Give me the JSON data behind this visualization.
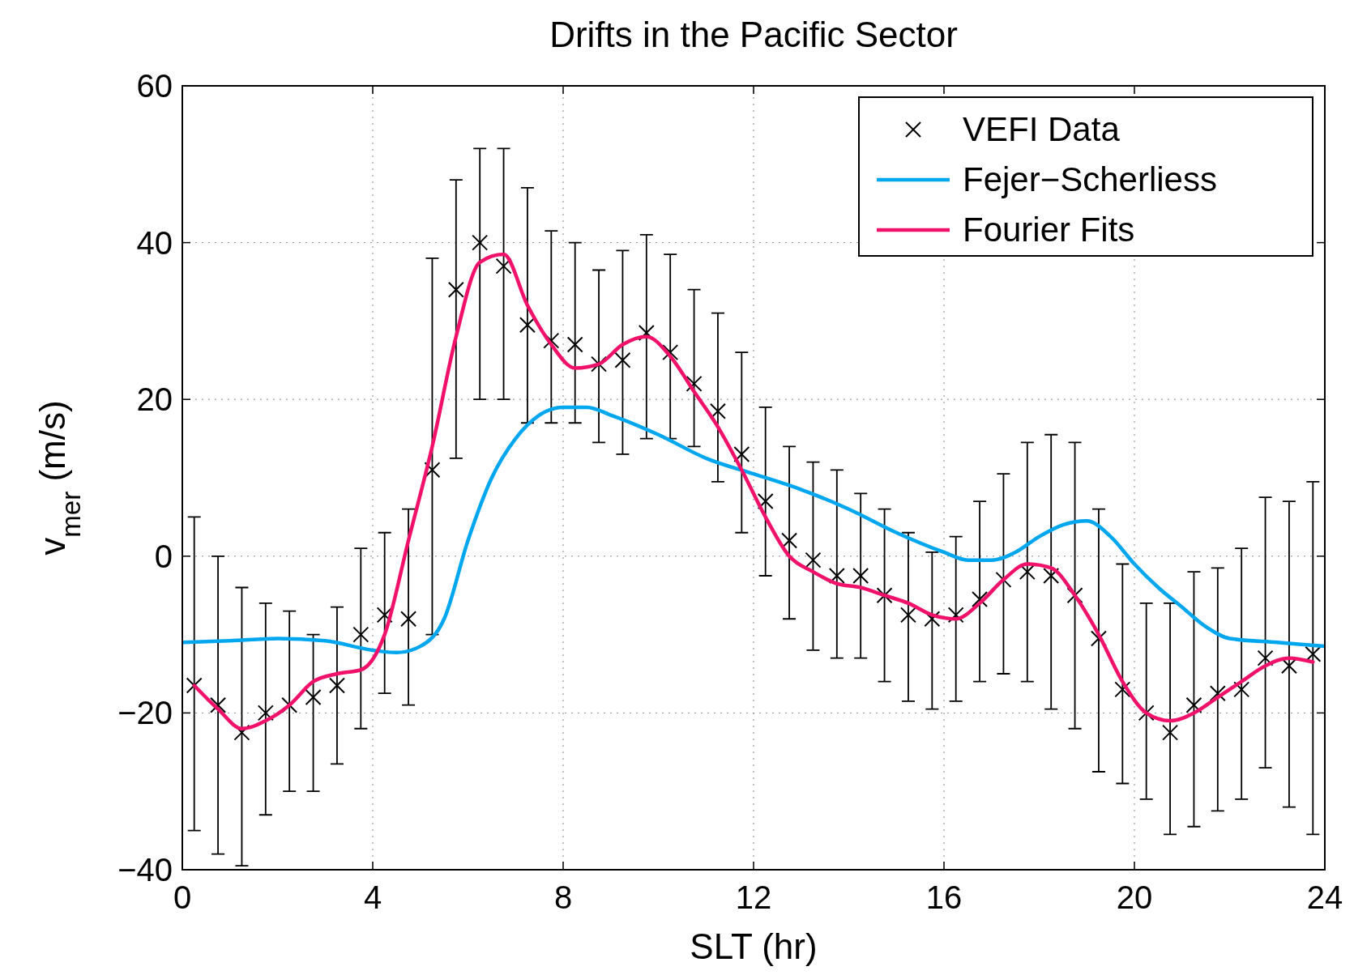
{
  "chart_data": {
    "type": "scatter",
    "title": "Drifts in the Pacific Sector",
    "xlabel": "SLT (hr)",
    "ylabel": "v$_{mer}$ (m/s)",
    "xlim": [
      0,
      24
    ],
    "xticks": [
      0,
      4,
      8,
      12,
      16,
      20,
      24
    ],
    "ylim": [
      -40,
      60
    ],
    "yticks": [
      -40,
      -20,
      0,
      20,
      40,
      60
    ],
    "grid": true,
    "legend": "top right",
    "series": [
      {
        "name": "VEFI Data",
        "marker": "cross",
        "color": "#000000",
        "x": [
          0.25,
          0.75,
          1.25,
          1.75,
          2.25,
          2.75,
          3.25,
          3.75,
          4.25,
          4.75,
          5.25,
          5.75,
          6.25,
          6.75,
          7.25,
          7.75,
          8.25,
          8.75,
          9.25,
          9.75,
          10.25,
          10.75,
          11.25,
          11.75,
          12.25,
          12.75,
          13.25,
          13.75,
          14.25,
          14.75,
          15.25,
          15.75,
          16.25,
          16.75,
          17.25,
          17.75,
          18.25,
          18.75,
          19.25,
          19.75,
          20.25,
          20.75,
          21.25,
          21.75,
          22.25,
          22.75,
          23.25,
          23.75
        ],
        "values": [
          -16.5,
          -19,
          -22.5,
          -20,
          -19,
          -18,
          -16.5,
          -10,
          -7.5,
          -8,
          11,
          34,
          40,
          37,
          29.5,
          27.5,
          27,
          24.5,
          25,
          28.5,
          26,
          22,
          18.5,
          13,
          7,
          2,
          -0.5,
          -2.5,
          -2.5,
          -5,
          -7.5,
          -8,
          -7.5,
          -5.5,
          -3,
          -2,
          -2.5,
          -5,
          -10.5,
          -17,
          -20,
          -22.5,
          -19,
          -17.5,
          -17,
          -13,
          -14,
          -12.5
        ],
        "errors": [
          [
            -35,
            5
          ],
          [
            -38,
            0
          ],
          [
            -39.5,
            -4
          ],
          [
            -33,
            -6
          ],
          [
            -30,
            -7
          ],
          [
            -30,
            -10
          ],
          [
            -26.5,
            -6.5
          ],
          [
            -22,
            1
          ],
          [
            -17.5,
            3
          ],
          [
            -19,
            6
          ],
          [
            -10,
            38
          ],
          [
            12.5,
            48
          ],
          [
            20,
            52
          ],
          [
            20,
            52
          ],
          [
            17,
            47
          ],
          [
            17,
            41.5
          ],
          [
            17,
            40
          ],
          [
            14.5,
            36.5
          ],
          [
            13,
            39
          ],
          [
            15,
            41
          ],
          [
            15,
            38.5
          ],
          [
            14,
            34
          ],
          [
            9.5,
            31
          ],
          [
            3,
            26
          ],
          [
            -2.5,
            19
          ],
          [
            -8,
            14
          ],
          [
            -12,
            12
          ],
          [
            -13,
            11
          ],
          [
            -13,
            8
          ],
          [
            -16,
            6
          ],
          [
            -18.5,
            3
          ],
          [
            -19.5,
            0.5
          ],
          [
            -18.5,
            2.5
          ],
          [
            -16,
            7
          ],
          [
            -15,
            10.5
          ],
          [
            -16,
            14.5
          ],
          [
            -19.5,
            15.5
          ],
          [
            -22,
            14.5
          ],
          [
            -27.5,
            6
          ],
          [
            -29,
            -1
          ],
          [
            -31,
            -6
          ],
          [
            -35.5,
            -6
          ],
          [
            -34.5,
            -2
          ],
          [
            -32.5,
            -1.5
          ],
          [
            -31,
            1
          ],
          [
            -27,
            7.5
          ],
          [
            -32,
            7
          ],
          [
            -35.5,
            9.5
          ]
        ]
      },
      {
        "name": "Fejer−Scherliess",
        "type": "line",
        "line_style": "solid",
        "color": "#00a6ee",
        "x": [
          0,
          1,
          2,
          3,
          4,
          4.5,
          5,
          5.5,
          6,
          6.5,
          7,
          7.5,
          8,
          8.5,
          9,
          10,
          11,
          12,
          13,
          14,
          15,
          16,
          16.5,
          17,
          17.5,
          18,
          18.5,
          19,
          19.5,
          20,
          20.5,
          21,
          21.5,
          22,
          23,
          24
        ],
        "values": [
          -11,
          -10.8,
          -10.5,
          -10.8,
          -12,
          -12.3,
          -11.5,
          -8,
          2,
          10,
          15,
          18,
          19,
          19,
          18,
          15.5,
          12.5,
          10.5,
          8.5,
          6,
          3,
          0.5,
          -0.5,
          -0.5,
          0.5,
          2.5,
          4,
          4.5,
          2.5,
          -1,
          -4,
          -6.5,
          -9,
          -10.5,
          -11,
          -11.5
        ]
      },
      {
        "name": "Fourier Fits",
        "type": "line",
        "line_style": "solid",
        "color": "#f0116b",
        "x": [
          0.25,
          0.75,
          1.25,
          1.75,
          2.25,
          2.75,
          3.25,
          3.75,
          4.25,
          4.75,
          5.25,
          5.75,
          6.25,
          6.75,
          7.25,
          7.75,
          8.25,
          8.75,
          9.25,
          9.75,
          10.25,
          10.75,
          11.25,
          11.75,
          12.25,
          12.75,
          13.25,
          13.75,
          14.25,
          14.75,
          15.25,
          15.75,
          16.25,
          16.75,
          17.25,
          17.75,
          18.25,
          18.75,
          19.25,
          19.75,
          20.25,
          20.75,
          21.25,
          21.75,
          22.25,
          22.75,
          23.25,
          23.75
        ],
        "values": [
          -16.5,
          -19.5,
          -22,
          -21,
          -19,
          -16,
          -15,
          -14.5,
          -10,
          2,
          14,
          28,
          37.5,
          38.5,
          32,
          27,
          24,
          24.5,
          27,
          28,
          25.5,
          21,
          16.5,
          11,
          5,
          0,
          -2,
          -3.5,
          -4,
          -5,
          -6,
          -7.5,
          -8,
          -6,
          -3,
          -1,
          -1.5,
          -5,
          -10,
          -16,
          -20,
          -21,
          -20,
          -18,
          -16,
          -14,
          -13,
          -13.5
        ]
      }
    ]
  }
}
